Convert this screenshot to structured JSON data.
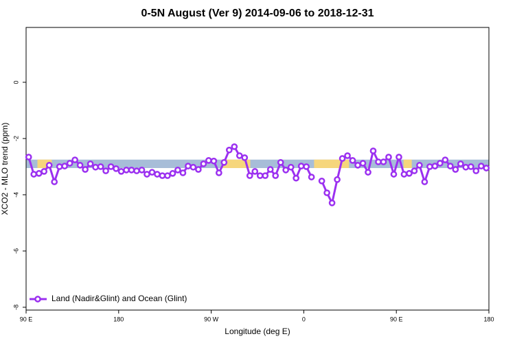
{
  "chart_data": {
    "type": "line",
    "title": "0-5N August (Ver 9)   2014-09-06 to 2018-12-31",
    "xlabel": "Longitude (deg E)",
    "ylabel": "XCO2 - MLO trend (ppm)",
    "xlim": [
      90,
      540
    ],
    "ylim": [
      -8.1,
      1.95
    ],
    "xticks": [
      {
        "value": 90,
        "label": "90 E"
      },
      {
        "value": 180,
        "label": "180"
      },
      {
        "value": 270,
        "label": "90 W"
      },
      {
        "value": 360,
        "label": "0"
      },
      {
        "value": 450,
        "label": "90 E"
      },
      {
        "value": 540,
        "label": "180"
      }
    ],
    "yticks": [
      0,
      -2,
      -4,
      -6,
      -8
    ],
    "legend": "bottom-left",
    "band": {
      "ylim": [
        -3.05,
        -2.75
      ],
      "segments": [
        {
          "x": [
            90,
            540
          ],
          "color": "#a7bdd8"
        },
        {
          "x": [
            101,
            115
          ],
          "color": "#f6d67c"
        },
        {
          "x": [
            280,
            308
          ],
          "color": "#f6d67c"
        },
        {
          "x": [
            370,
            404
          ],
          "color": "#f6d67c"
        },
        {
          "x": [
            457,
            465
          ],
          "color": "#f6d67c"
        }
      ]
    },
    "x": [
      92.5,
      97.5,
      102.5,
      107.5,
      112.5,
      117.5,
      122.5,
      127.5,
      132.5,
      137.5,
      142.5,
      147.5,
      152.5,
      157.5,
      162.5,
      167.5,
      172.5,
      177.5,
      182.5,
      187.5,
      192.5,
      197.5,
      202.5,
      207.5,
      212.5,
      217.5,
      222.5,
      227.5,
      232.5,
      237.5,
      242.5,
      247.5,
      252.5,
      257.5,
      262.5,
      267.5,
      272.5,
      277.5,
      282.5,
      287.5,
      292.5,
      297.5,
      302.5,
      307.5,
      312.5,
      317.5,
      322.5,
      327.5,
      332.5,
      337.5,
      342.5,
      347.5,
      352.5,
      357.5,
      362.5,
      367.5,
      372.5,
      377.5,
      382.5,
      387.5,
      392.5,
      397.5,
      402.5,
      407.5,
      412.5,
      417.5,
      422.5,
      427.5,
      432.5,
      437.5,
      442.5,
      447.5,
      452.5,
      457.5,
      462.5,
      467.5,
      472.5,
      477.5,
      482.5,
      487.5,
      492.5,
      497.5,
      502.5,
      507.5,
      512.5,
      517.5,
      522.5,
      527.5,
      532.5,
      537.5
    ],
    "series": [
      {
        "name": "Land (Nadir&Glint) and Ocean (Glint)",
        "color": "#9b30f0",
        "values": [
          -2.66,
          -3.27,
          -3.24,
          -3.17,
          -2.95,
          -3.54,
          -3.0,
          -2.98,
          -2.88,
          -2.76,
          -2.95,
          -3.1,
          -2.9,
          -3.02,
          -3.0,
          -3.15,
          -3.0,
          -3.07,
          -3.17,
          -3.12,
          -3.12,
          -3.15,
          -3.12,
          -3.27,
          -3.2,
          -3.27,
          -3.32,
          -3.32,
          -3.24,
          -3.12,
          -3.22,
          -2.98,
          -3.02,
          -3.1,
          -2.9,
          -2.78,
          -2.8,
          -3.22,
          -2.85,
          -2.41,
          -2.29,
          -2.61,
          -2.68,
          -3.32,
          -3.17,
          -3.32,
          -3.32,
          -3.1,
          -3.32,
          -2.85,
          -3.12,
          -3.02,
          -3.41,
          -2.98,
          -3.0,
          -3.37,
          null,
          -3.51,
          -3.93,
          -4.29,
          -3.46,
          -2.71,
          -2.61,
          -2.78,
          -2.95,
          -2.88,
          -3.2,
          -2.44,
          -2.83,
          -2.83,
          -2.66,
          -3.27,
          -2.66,
          -3.27,
          -3.24,
          -3.15,
          -2.95,
          -3.54,
          -3.0,
          -2.98,
          -2.88,
          -2.76,
          -2.98,
          -3.1,
          -2.9,
          -3.02,
          -3.0,
          -3.15,
          -2.98,
          -3.05
        ]
      }
    ]
  }
}
